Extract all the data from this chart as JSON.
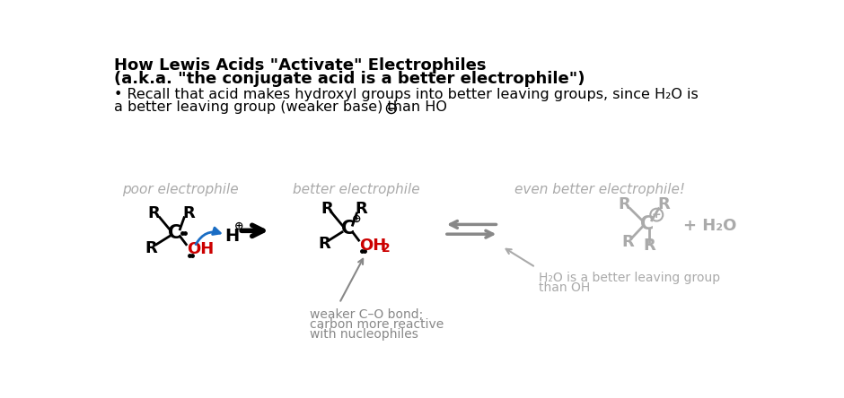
{
  "title_line1": "How Lewis Acids \"Activate\" Electrophiles",
  "title_line2": "(a.k.a. \"the conjugate acid is a better electrophile\")",
  "bullet_line1": "• Recall that acid makes hydroxyl groups into better leaving groups, since H₂O is",
  "bullet_line2": "a better leaving group (weaker base) than HO",
  "label_poor": "poor electrophile",
  "label_better": "better electrophile",
  "label_even_better": "even better electrophile!",
  "annotation1_line1": "weaker C–O bond;",
  "annotation1_line2": "carbon more reactive",
  "annotation1_line3": "with nucleophiles",
  "annotation2_line1": "H₂O is a better leaving group",
  "annotation2_line2": "than OH",
  "plus_h2o": "+ H₂O",
  "bg_color": "#ffffff",
  "black": "#000000",
  "gray": "#888888",
  "lightgray": "#aaaaaa",
  "red": "#cc0000",
  "blue": "#1a6dc4",
  "title_fontsize": 13,
  "body_fontsize": 11.5,
  "label_fontsize": 11,
  "annotation_fontsize": 10,
  "struct_fontsize": 13
}
